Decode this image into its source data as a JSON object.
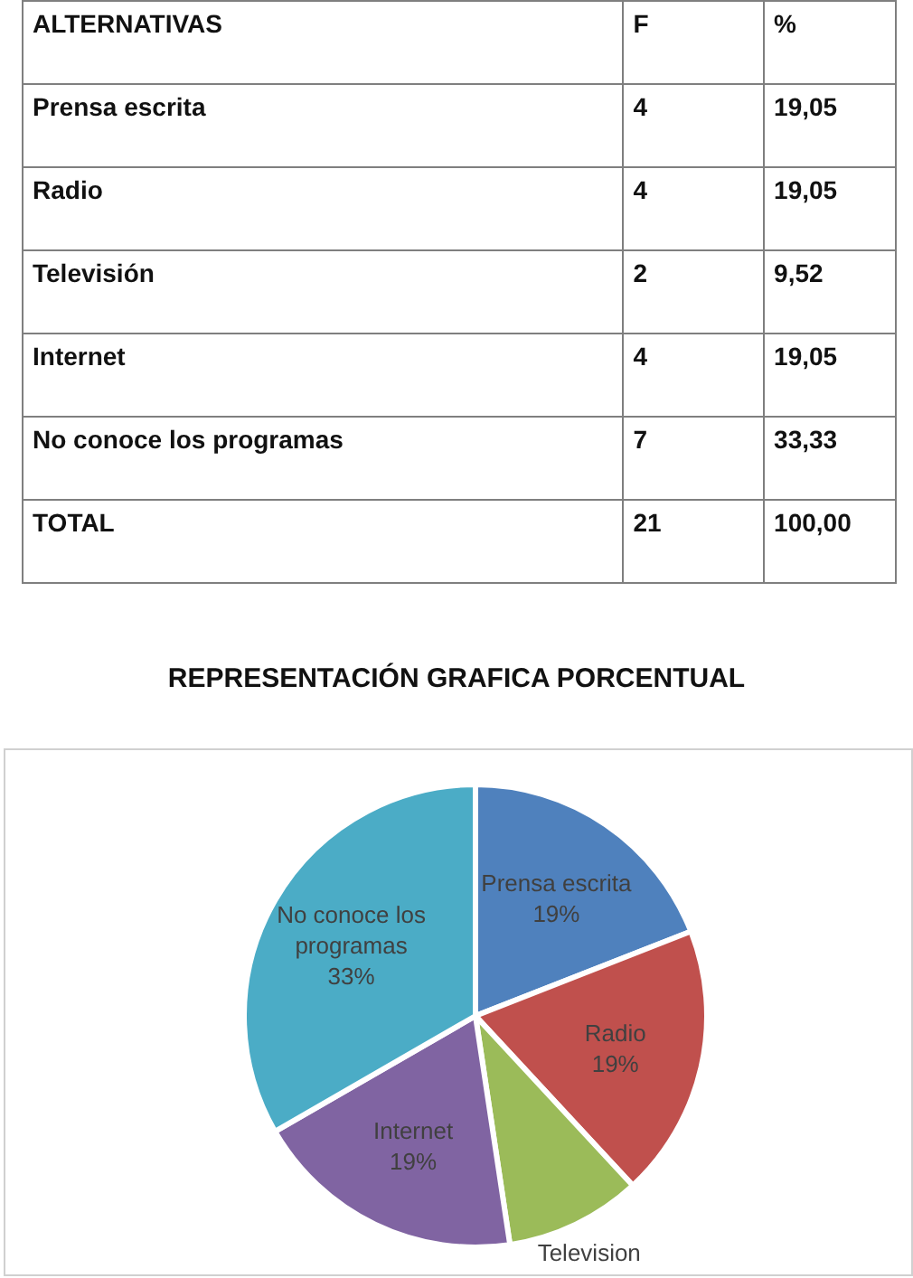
{
  "chart_data": [
    {
      "type": "other",
      "xlabel": "ALTERNATIVAS",
      "categories": [
        "Prensa escrita",
        "Radio",
        "Televisión",
        "Internet",
        "No conoce los programas",
        "TOTAL"
      ],
      "series": [
        {
          "name": "F",
          "values": [
            4,
            4,
            2,
            4,
            7,
            21
          ],
          "value_labels": [
            "4",
            "4",
            "2",
            "4",
            "7",
            "21"
          ]
        },
        {
          "name": "%",
          "values": [
            19.05,
            19.05,
            9.52,
            19.05,
            33.33,
            100
          ],
          "value_labels": [
            "19,05",
            "19,05",
            "9,52",
            "19,05",
            "33,33",
            "100,00"
          ]
        }
      ]
    },
    {
      "type": "pie",
      "title": "REPRESENTACIÓN GRAFICA PORCENTUAL",
      "categories": [
        "Prensa escrita",
        "Radio",
        "Television",
        "Internet",
        "No conoce los programas"
      ],
      "values": [
        19.05,
        19.05,
        9.52,
        19.05,
        33.33
      ],
      "colors": [
        "#4f81bd",
        "#c0504d",
        "#9bbb59",
        "#8064a2",
        "#4bacc6"
      ],
      "value_labels": [
        "19%",
        "19%",
        null,
        "19%",
        "33%"
      ]
    }
  ]
}
